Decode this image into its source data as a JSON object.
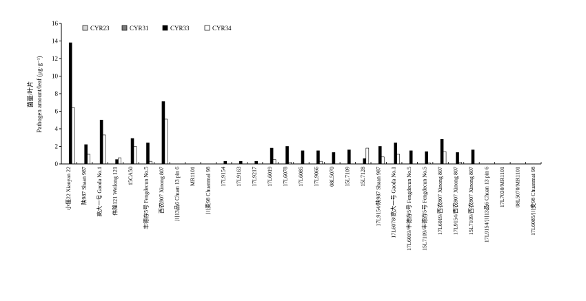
{
  "chart_data": {
    "type": "bar",
    "ylabel_cn": "菌量/叶片",
    "ylabel_en": "Pathogen amount/leaf (μg·g⁻¹)",
    "xlabel": "",
    "ylim": [
      0,
      16
    ],
    "yticks": [
      0,
      2,
      4,
      6,
      8,
      10,
      12,
      14,
      16
    ],
    "legend_position": "top-left",
    "categories": [
      "小偃22 Xiaoyan 22",
      "陕987 Shaan 987",
      "高大一号 Gaoda No.1",
      "伟隆121 Weilong 121",
      "15CA50",
      "丰德存5号 Fengdecun No.5",
      "西农807 Xinong 807",
      "川13品6 Chuan 13 pin 6",
      "MR1101",
      "川麦98 Chuanmai 98",
      "17L9154",
      "17L9163",
      "17L9217",
      "17L6019",
      "17L6078",
      "17L6085",
      "17L9066",
      "08L5070",
      "15L7109",
      "15L7128",
      "17L9154/陕987 Shaan 987",
      "17L6078/高大一号 Gaoda No.1",
      "17L6019/丰德存5号 Fengdecun No.5",
      "15L7109/丰德存5号 Fengdecun No.5",
      "17L6019/西农807 Xinong 807",
      "17L9154/西农807 Xinong 807",
      "15L7109/西农807 Xinong 807",
      "17L9154/川13品6 Chuan 13 pin 6",
      "17L7030/MR1101",
      "08L5070/MR1101",
      "17L6085/川麦98 Chuanmai 98"
    ],
    "series": [
      {
        "name": "CYR23",
        "color": "#d6d6d6",
        "values": [
          0,
          0,
          0,
          0,
          0,
          0,
          0,
          0,
          0,
          0,
          0,
          0,
          0,
          0,
          0,
          0,
          0,
          0,
          0,
          0,
          0,
          0,
          0,
          0,
          0,
          0,
          0,
          0,
          0,
          0,
          0
        ]
      },
      {
        "name": "CYR31",
        "color": "#7a7a7a",
        "values": [
          0,
          0,
          0,
          0,
          0,
          0,
          0,
          0,
          0,
          0,
          0,
          0,
          0,
          0,
          0,
          0,
          0,
          0,
          0,
          0,
          0,
          0,
          0,
          0,
          0,
          0,
          0,
          0,
          0,
          0,
          0
        ]
      },
      {
        "name": "CYR33",
        "color": "#000000",
        "values": [
          13.8,
          2.2,
          5.0,
          0.5,
          2.9,
          2.4,
          7.1,
          0,
          0,
          0,
          0.3,
          0.3,
          0.3,
          1.8,
          2.0,
          1.5,
          1.5,
          1.3,
          1.6,
          0.6,
          2.0,
          2.4,
          1.5,
          1.4,
          2.8,
          1.3,
          1.6,
          0,
          0,
          0,
          0
        ]
      },
      {
        "name": "CYR34",
        "color": "#ffffff",
        "values": [
          6.4,
          1.1,
          3.3,
          0.7,
          2.0,
          0.3,
          5.1,
          0,
          0,
          0,
          0,
          0,
          0,
          0.5,
          0.2,
          0,
          0.3,
          0,
          0,
          1.8,
          0.8,
          1.1,
          0,
          0.1,
          1.4,
          0.2,
          0,
          0,
          0,
          0,
          0
        ]
      }
    ]
  }
}
